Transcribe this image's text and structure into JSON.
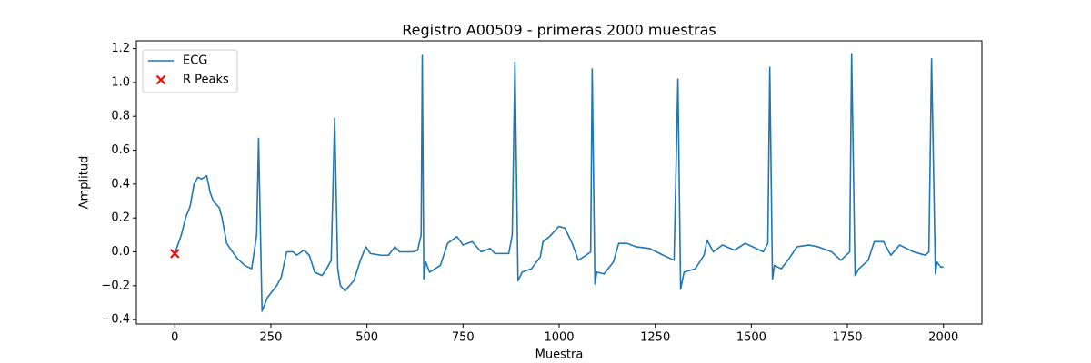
{
  "chart_data": {
    "type": "line",
    "title": "Registro A00509 - primeras 2000 muestras",
    "xlabel": "Muestra",
    "ylabel": "Amplitud",
    "xlim": [
      -100,
      2100
    ],
    "ylim": [
      -0.426,
      1.246
    ],
    "xticks": [
      0,
      250,
      500,
      750,
      1000,
      1250,
      1500,
      1750,
      2000
    ],
    "yticks": [
      {
        "value": -0.4,
        "label": "−0.4"
      },
      {
        "value": -0.2,
        "label": "−0.2"
      },
      {
        "value": 0,
        "label": "0.0"
      },
      0.2,
      0.4,
      0.6,
      0.8,
      {
        "value": 1,
        "label": "1.0"
      },
      1.2
    ],
    "legend": "upper left",
    "grid": false,
    "series": [
      {
        "name": "ECG",
        "type": "line",
        "color": "#1f77b4",
        "x": [
          0,
          17,
          28,
          40,
          50,
          60,
          70,
          83,
          92,
          100,
          116,
          123,
          135,
          147,
          163,
          182,
          200,
          213,
          218,
          227,
          241,
          265,
          277,
          291,
          308,
          317,
          336,
          350,
          364,
          383,
          395,
          407,
          416,
          424,
          431,
          443,
          466,
          483,
          497,
          509,
          537,
          556,
          573,
          585,
          620,
          632,
          641,
          644,
          648,
          653,
          663,
          691,
          710,
          734,
          750,
          774,
          797,
          821,
          833,
          869,
          878,
          885,
          893,
          904,
          928,
          951,
          958,
          975,
          999,
          1015,
          1034,
          1050,
          1070,
          1082,
          1086,
          1093,
          1098,
          1117,
          1141,
          1155,
          1176,
          1200,
          1235,
          1271,
          1299,
          1309,
          1316,
          1325,
          1354,
          1377,
          1385,
          1401,
          1425,
          1456,
          1484,
          1503,
          1531,
          1543,
          1548,
          1555,
          1560,
          1578,
          1598,
          1619,
          1650,
          1673,
          1709,
          1733,
          1756,
          1761,
          1770,
          1780,
          1804,
          1820,
          1844,
          1863,
          1886,
          1922,
          1953,
          1962,
          1969,
          1979,
          1983,
          1993,
          2000
        ],
        "values": [
          -0.01,
          0.1,
          0.2,
          0.27,
          0.4,
          0.44,
          0.43,
          0.45,
          0.35,
          0.3,
          0.26,
          0.2,
          0.05,
          0.01,
          -0.04,
          -0.08,
          -0.1,
          0.1,
          0.67,
          -0.35,
          -0.27,
          -0.2,
          -0.15,
          0,
          0,
          -0.02,
          0.01,
          -0.02,
          -0.12,
          -0.14,
          -0.1,
          -0.05,
          0.79,
          -0.1,
          -0.2,
          -0.23,
          -0.17,
          -0.05,
          0.03,
          -0.01,
          -0.02,
          -0.02,
          0.03,
          0,
          0,
          0.01,
          0.1,
          1.16,
          -0.16,
          -0.06,
          -0.12,
          -0.08,
          0.05,
          0.09,
          0.04,
          0.06,
          0,
          0.02,
          -0.01,
          -0.01,
          0.1,
          1.12,
          -0.17,
          -0.12,
          -0.1,
          -0.03,
          0.06,
          0.09,
          0.15,
          0.14,
          0.05,
          -0.05,
          -0.02,
          0,
          1.08,
          -0.19,
          -0.12,
          -0.13,
          -0.06,
          0.05,
          0.05,
          0.03,
          0.02,
          -0.02,
          -0.05,
          1.02,
          -0.22,
          -0.12,
          -0.1,
          -0.02,
          0.07,
          0,
          0.04,
          0.01,
          0.05,
          0.03,
          0,
          0.05,
          1.09,
          -0.16,
          -0.08,
          -0.1,
          -0.04,
          0.03,
          0.04,
          0.03,
          0,
          -0.05,
          0,
          1.17,
          -0.14,
          -0.1,
          -0.05,
          0.06,
          0.06,
          -0.02,
          0.04,
          0,
          -0.02,
          0,
          1.14,
          -0.13,
          -0.06,
          -0.09,
          -0.09
        ]
      },
      {
        "name": "R Peaks",
        "type": "scatter",
        "color": "#ff0000",
        "x": [
          0
        ],
        "values": [
          -0.01
        ]
      }
    ]
  }
}
